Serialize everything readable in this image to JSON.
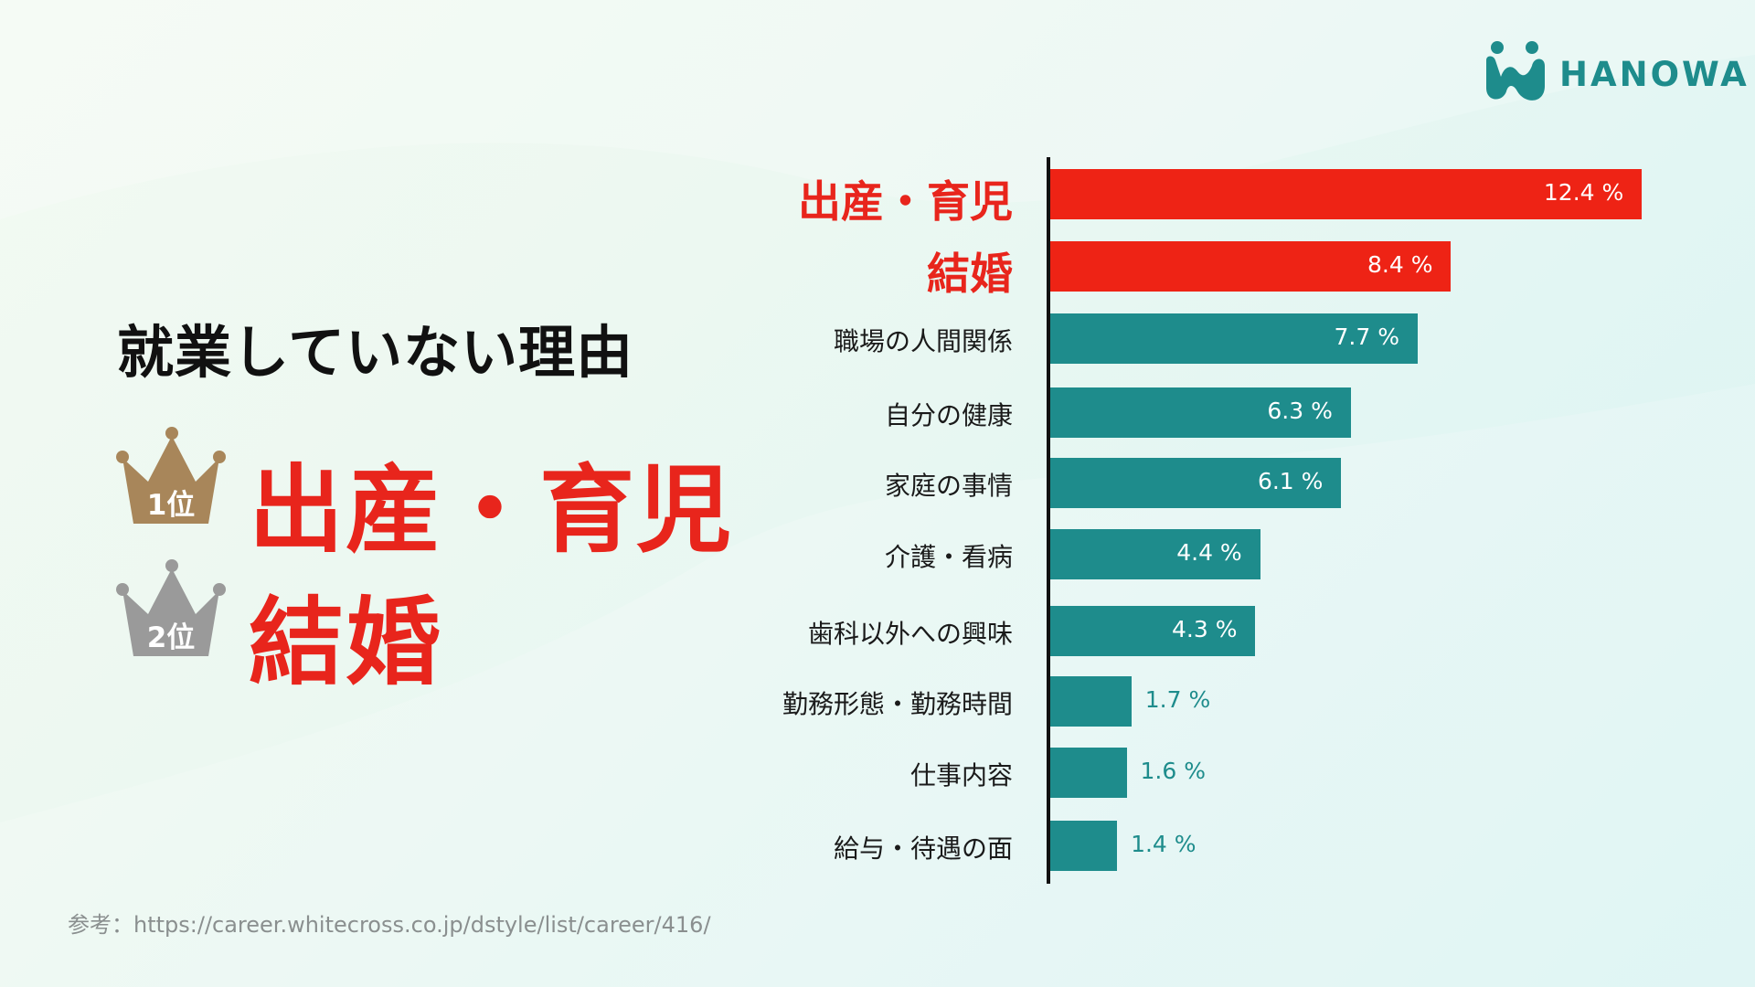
{
  "logo": {
    "text": "HANOWA",
    "color": "#1e8c8c"
  },
  "summary": {
    "heading": "就業していない理由",
    "rank1": {
      "badge": "1位",
      "text": "出産・育児",
      "crown_color": "#a8865a"
    },
    "rank2": {
      "badge": "2位",
      "text": "結婚",
      "crown_color": "#9a9a9a"
    },
    "highlight_color": "#e8251c"
  },
  "source": "参考：https://career.whitecross.co.jp/dstyle/list/career/416/",
  "chart_data": {
    "type": "bar",
    "orientation": "horizontal",
    "categories": [
      "出産・育児",
      "結婚",
      "職場の人間関係",
      "自分の健康",
      "家庭の事情",
      "介護・看病",
      "歯科以外への興味",
      "勤務形態・勤務時間",
      "仕事内容",
      "給与・待遇の面"
    ],
    "values": [
      12.4,
      8.4,
      7.7,
      6.3,
      6.1,
      4.4,
      4.3,
      1.7,
      1.6,
      1.4
    ],
    "value_labels": [
      "12.4 %",
      "8.4 %",
      "7.7 %",
      "6.3 %",
      "6.1 %",
      "4.4 %",
      "4.3 %",
      "1.7 %",
      "1.6 %",
      "1.4 %"
    ],
    "highlighted": [
      true,
      true,
      false,
      false,
      false,
      false,
      false,
      false,
      false,
      false
    ],
    "colors": {
      "highlight": "#ee2315",
      "normal": "#1e8c8c"
    },
    "title": "",
    "xlabel": "",
    "ylabel": ""
  }
}
